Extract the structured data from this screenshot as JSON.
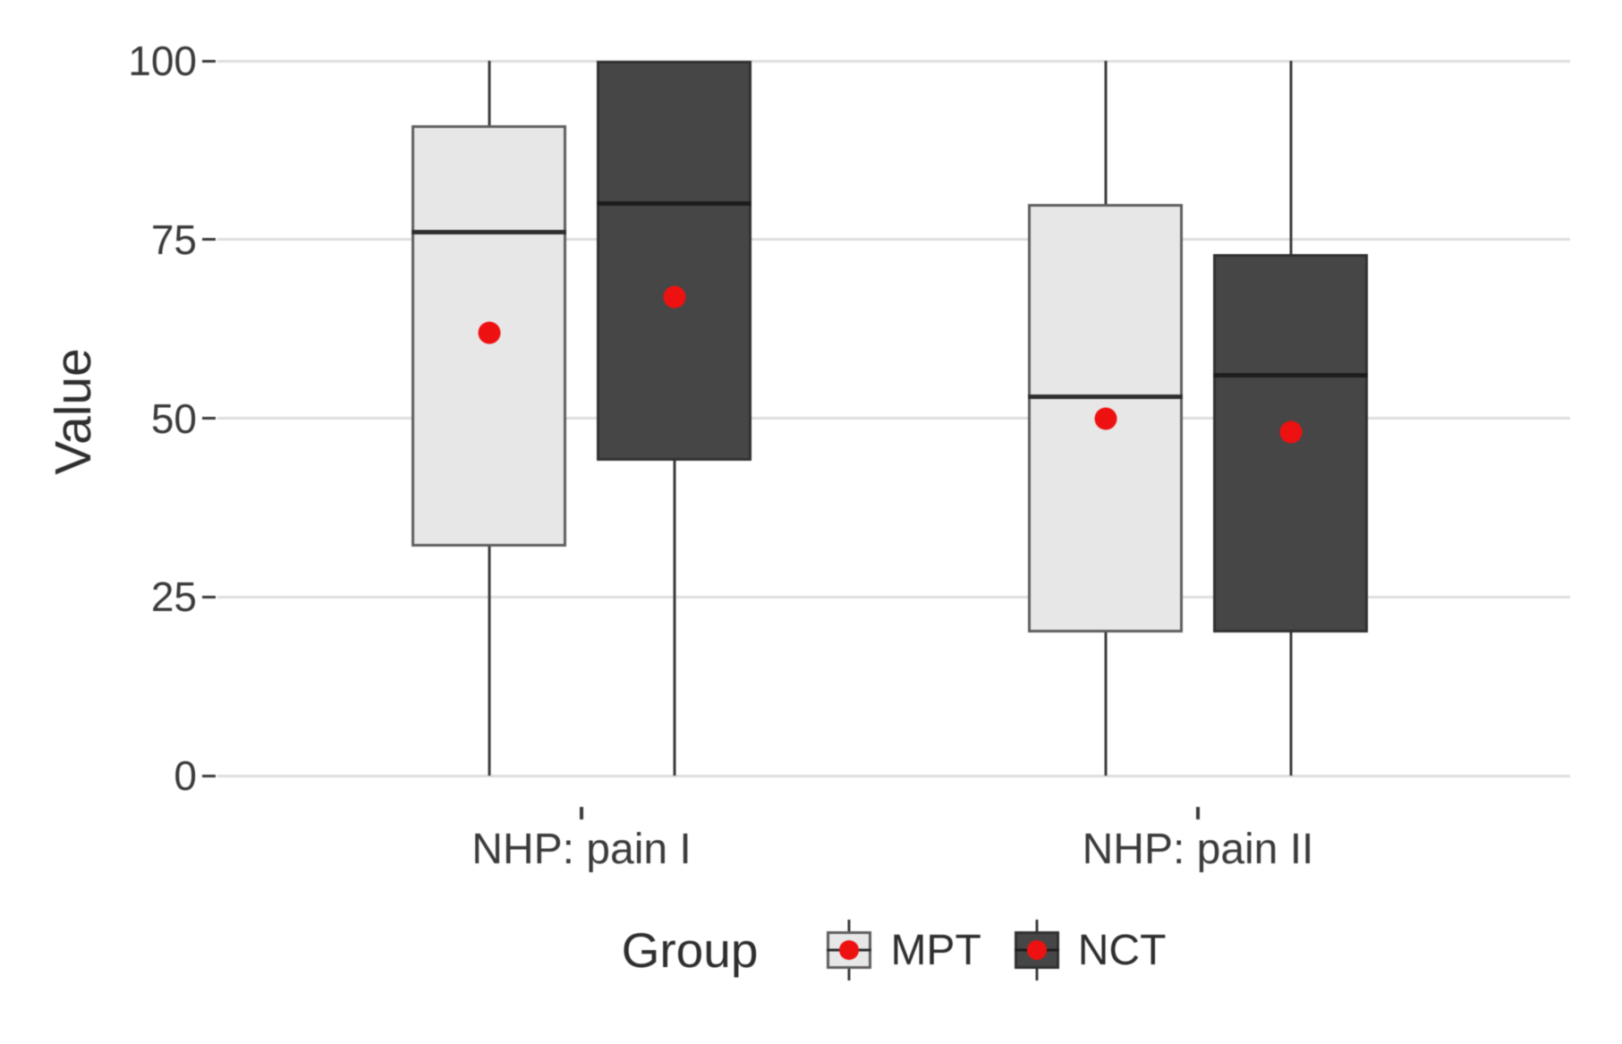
{
  "y_axis": {
    "title": "Value",
    "ticks": [
      0,
      25,
      50,
      75,
      100
    ],
    "tick_labels": [
      "0",
      "25",
      "50",
      "75",
      "100"
    ],
    "range": [
      0,
      100
    ]
  },
  "x_axis": {
    "categories": [
      "NHP: pain I",
      "NHP: pain II"
    ]
  },
  "legend": {
    "title": "Group",
    "entries": [
      {
        "label": "MPT",
        "fill": "#e7e7e7",
        "border": "#5e5e5e",
        "median_color": "#2d2d2d"
      },
      {
        "label": "NCT",
        "fill": "#464646",
        "border": "#303030",
        "median_color": "#1d1d1d"
      }
    ]
  },
  "colors": {
    "mean_dot": "#ee1111",
    "gridline": "#dedede",
    "whisker": "#3a3a3a",
    "text": "#2e2e2e",
    "background": "#ffffff"
  },
  "chart_data": {
    "type": "boxplot",
    "orientation": "vertical",
    "title": "",
    "ylabel": "Value",
    "xlabel": "",
    "ylim": [
      0,
      100
    ],
    "y_ticks": [
      0,
      25,
      50,
      75,
      100
    ],
    "grid": "horizontal-only",
    "legend_position": "bottom",
    "legend_title": "Group",
    "categories": [
      "NHP: pain I",
      "NHP: pain II"
    ],
    "groups": [
      "MPT",
      "NCT"
    ],
    "mean_marker": "red dot",
    "series": [
      {
        "name": "MPT",
        "category": "NHP: pain I",
        "whisker_low": 0,
        "q1": 32,
        "median": 76,
        "q3": 91,
        "whisker_high": 100,
        "mean": 62
      },
      {
        "name": "NCT",
        "category": "NHP: pain I",
        "whisker_low": 0,
        "q1": 44,
        "median": 80,
        "q3": 100,
        "whisker_high": 100,
        "mean": 67
      },
      {
        "name": "MPT",
        "category": "NHP: pain II",
        "whisker_low": 0,
        "q1": 20,
        "median": 53,
        "q3": 80,
        "whisker_high": 100,
        "mean": 50
      },
      {
        "name": "NCT",
        "category": "NHP: pain II",
        "whisker_low": 0,
        "q1": 20,
        "median": 56,
        "q3": 73,
        "whisker_high": 100,
        "mean": 48
      }
    ]
  }
}
